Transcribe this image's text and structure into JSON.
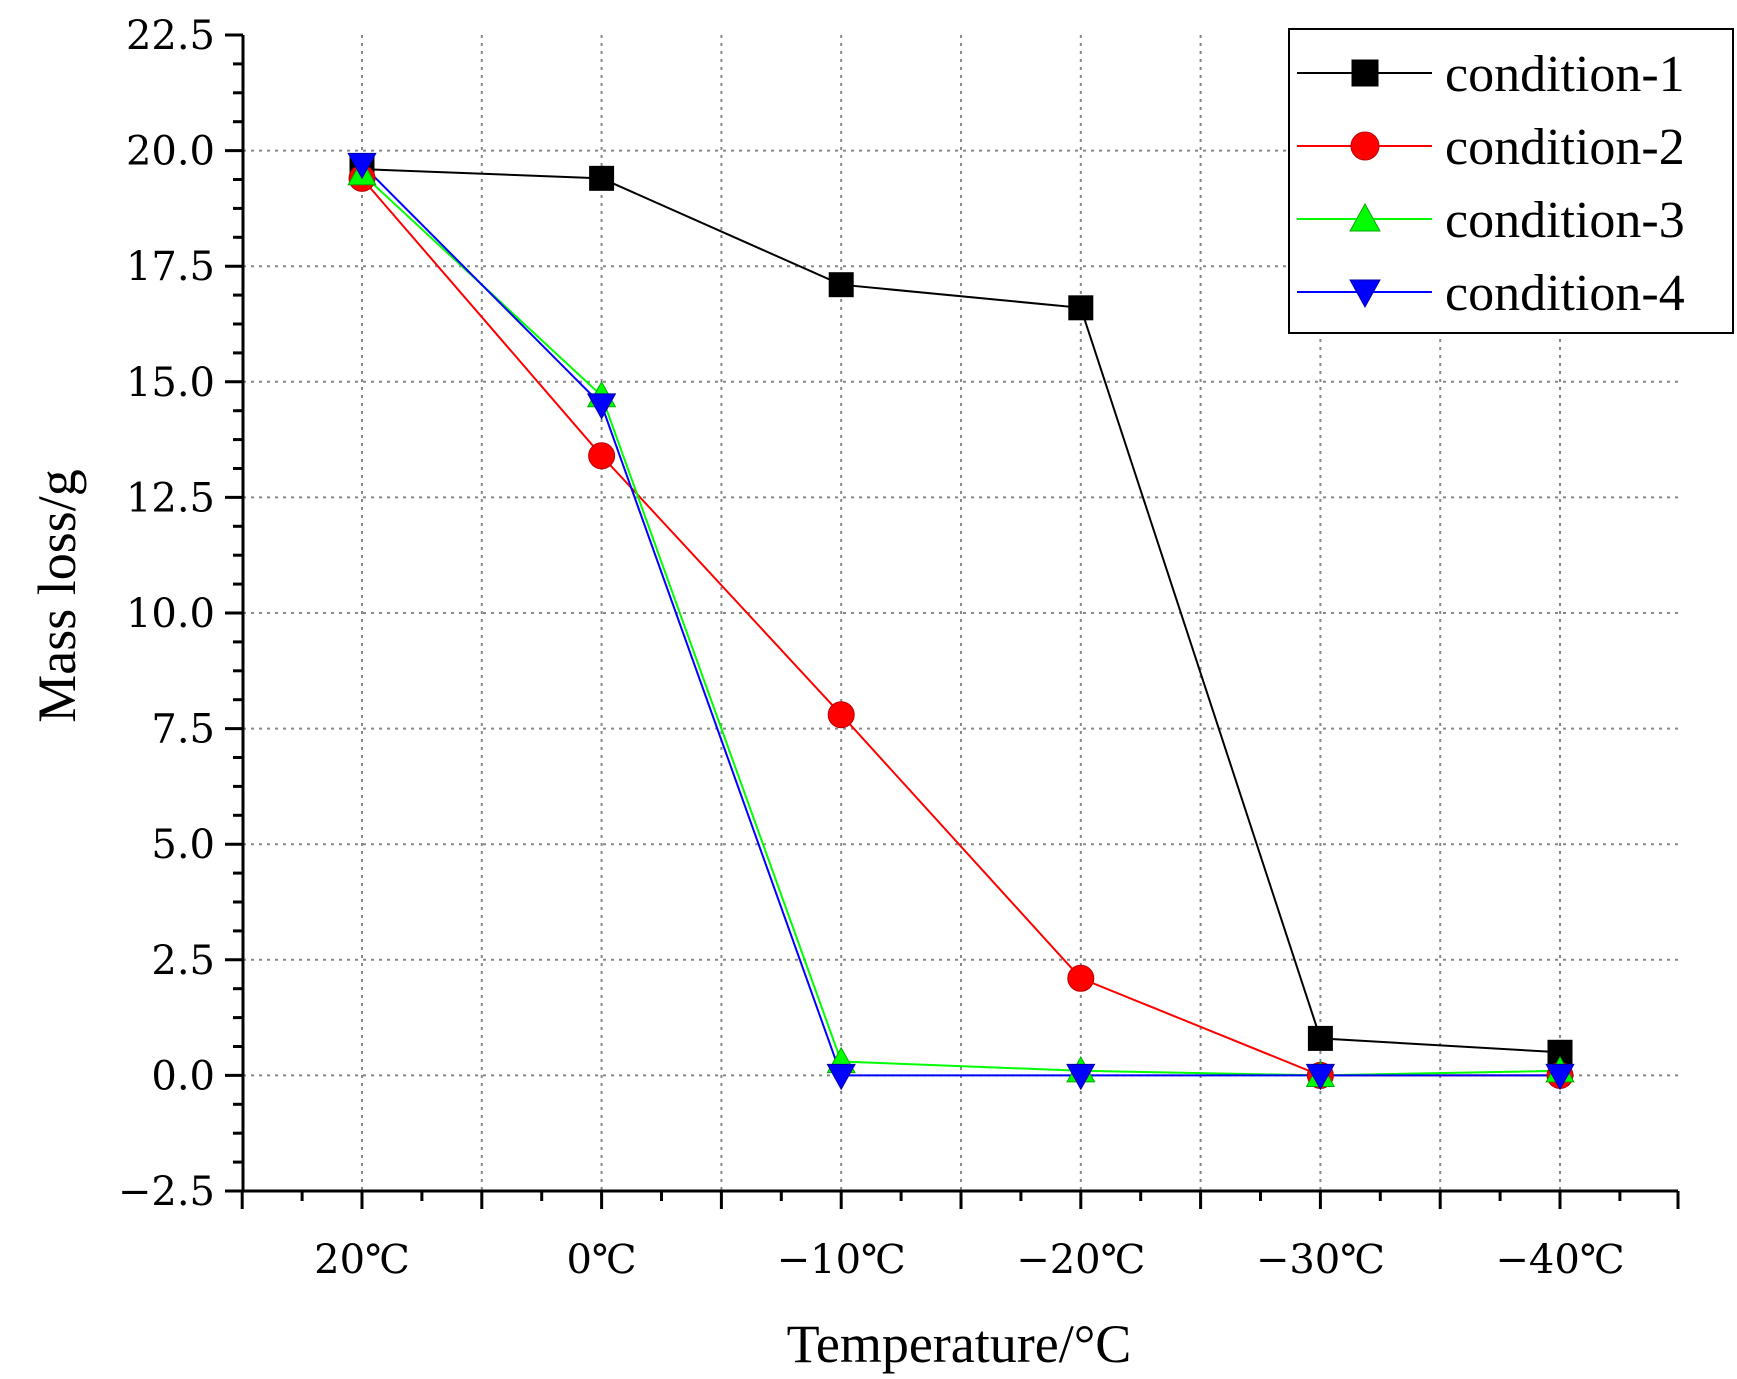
{
  "chart_data": {
    "type": "line",
    "title": "",
    "xlabel": "Temperature/°C",
    "ylabel": "Mass loss/g",
    "categories": [
      "20℃",
      "0℃",
      "−10℃",
      "−20℃",
      "−30℃",
      "−40℃"
    ],
    "ylim": [
      -2.5,
      22.5
    ],
    "yticks": [
      "−2.5",
      "0.0",
      "2.5",
      "5.0",
      "7.5",
      "10.0",
      "12.5",
      "15.0",
      "17.5",
      "20.0",
      "22.5"
    ],
    "grid": true,
    "legend_position": "top-right",
    "series": [
      {
        "name": "condition-1",
        "color": "#000000",
        "marker": "square",
        "values": [
          19.6,
          19.4,
          17.1,
          16.6,
          0.8,
          0.5
        ]
      },
      {
        "name": "condition-2",
        "color": "#ff0000",
        "marker": "circle",
        "values": [
          19.4,
          13.4,
          7.8,
          2.1,
          0.0,
          0.0
        ]
      },
      {
        "name": "condition-3",
        "color": "#00ff00",
        "marker": "triangle-up",
        "values": [
          19.5,
          14.7,
          0.3,
          0.1,
          0.0,
          0.1
        ]
      },
      {
        "name": "condition-4",
        "color": "#0000ff",
        "marker": "triangle-down",
        "values": [
          19.7,
          14.5,
          0.0,
          0.0,
          0.0,
          0.0
        ]
      }
    ]
  }
}
